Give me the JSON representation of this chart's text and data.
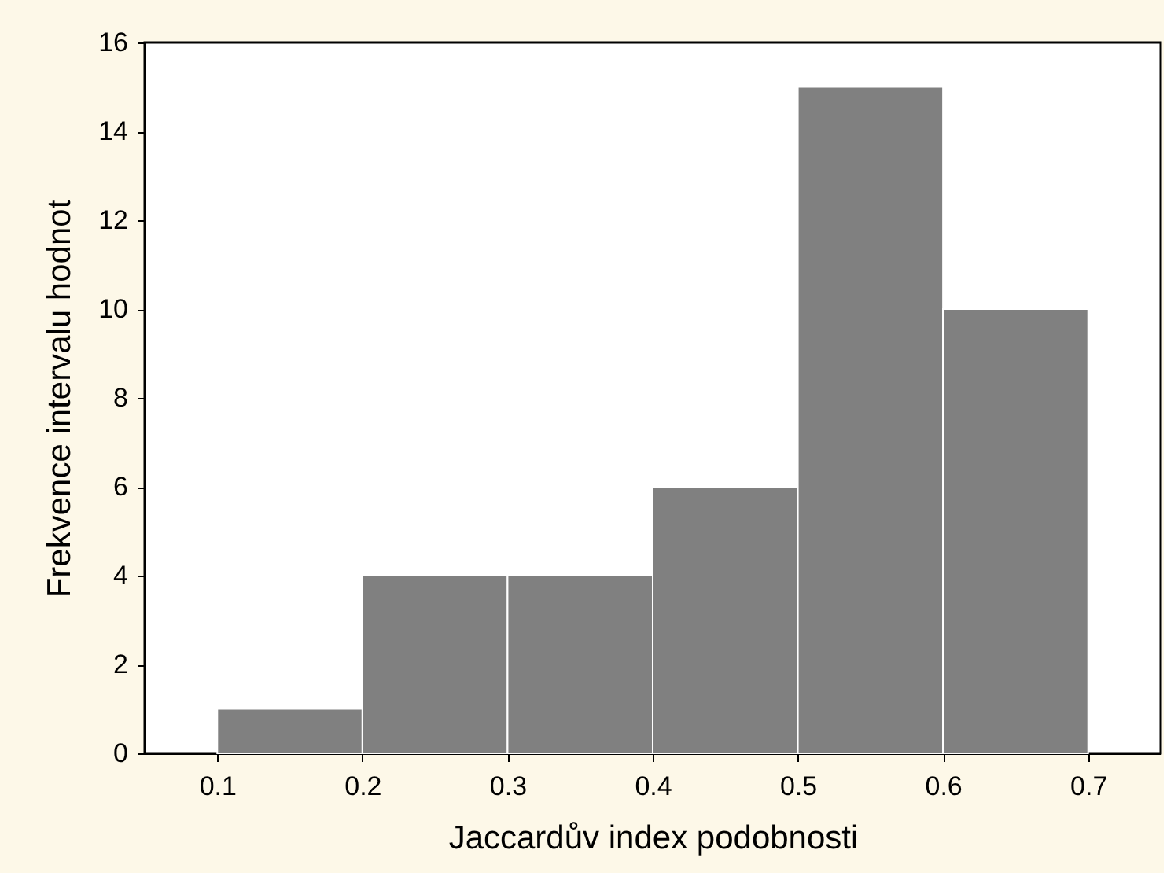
{
  "chart_data": {
    "type": "histogram",
    "xlabel": "Jaccardův index podobnosti",
    "ylabel": "Frekvence intervalu hodnot",
    "bins": [
      0.1,
      0.2,
      0.3,
      0.4,
      0.5,
      0.6,
      0.7
    ],
    "values": [
      1,
      4,
      4,
      6,
      15,
      10
    ],
    "color": "#808080",
    "xlim": [
      0.05,
      0.75
    ],
    "xticks": [
      0.1,
      0.2,
      0.3,
      0.4,
      0.5,
      0.6,
      0.7
    ],
    "ylim": [
      0,
      16
    ],
    "yticks": [
      0,
      2,
      4,
      6,
      8,
      10,
      12,
      14,
      16
    ],
    "grid": false
  }
}
